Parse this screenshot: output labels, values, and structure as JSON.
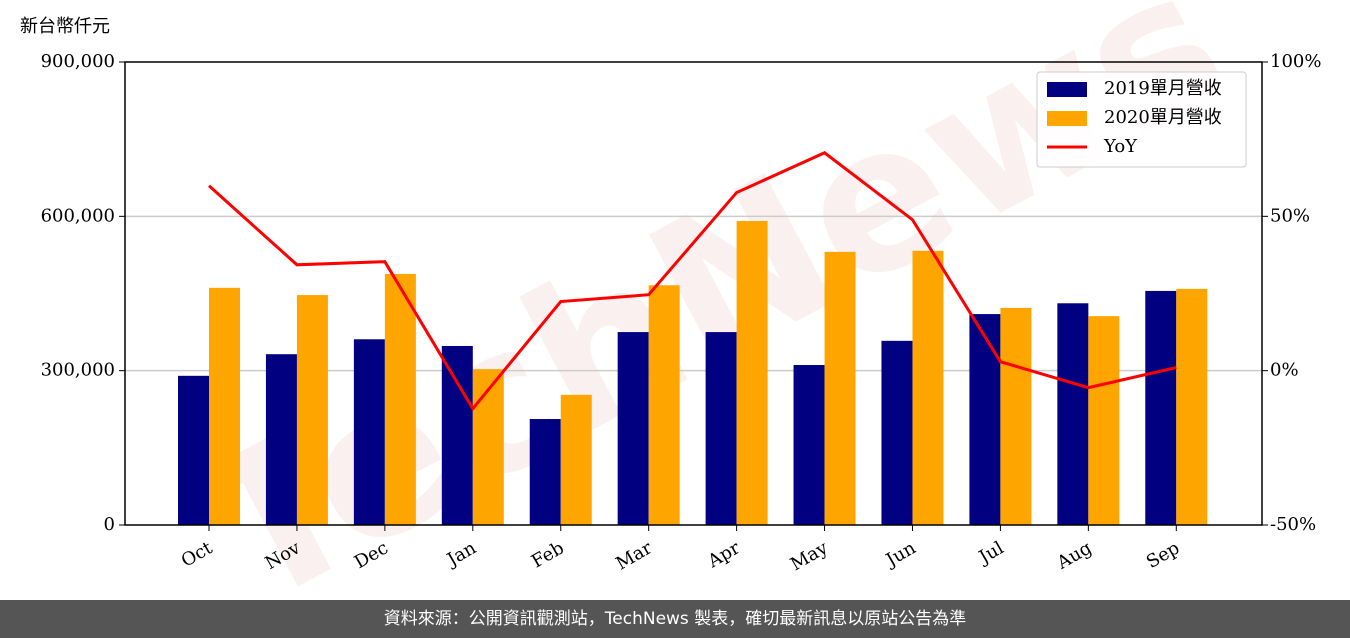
{
  "chart_data": {
    "type": "bar-line",
    "y_label": "新台幣仟元",
    "watermark": "TechNews",
    "footer": "資料來源：公開資訊觀測站，TechNews 製表，確切最新訊息以原站公告為準",
    "categories": [
      "Oct",
      "Nov",
      "Dec",
      "Jan",
      "Feb",
      "Mar",
      "Apr",
      "May",
      "Jun",
      "Jul",
      "Aug",
      "Sep"
    ],
    "series": [
      {
        "name": "2019單月營收",
        "color": "#000080",
        "kind": "bar",
        "values": [
          290000,
          332000,
          361000,
          348000,
          206000,
          375000,
          375000,
          311000,
          358000,
          410000,
          431000,
          455000
        ]
      },
      {
        "name": "2020單月營收",
        "color": "#ffa500",
        "kind": "bar",
        "values": [
          461000,
          447000,
          488000,
          303000,
          253000,
          466000,
          591000,
          531000,
          533000,
          422000,
          406000,
          459000
        ]
      },
      {
        "name": "YoY",
        "color": "#ff0000",
        "kind": "line",
        "axis": "y2",
        "values": [
          59.9,
          34.3,
          35.3,
          -12.3,
          22.4,
          24.6,
          57.7,
          70.6,
          48.9,
          2.9,
          -5.5,
          1.0
        ]
      }
    ],
    "ylim": [
      0,
      900000
    ],
    "yticks": [
      0,
      {
        "value": 300000,
        "label": "300,000"
      },
      {
        "value": 600000,
        "label": "600,000"
      },
      {
        "value": 900000,
        "label": "900,000"
      }
    ],
    "y2lim": [
      -50,
      100
    ],
    "y2ticks": [
      {
        "value": -50,
        "label": "-50%"
      },
      {
        "value": 0,
        "label": "0%"
      },
      {
        "value": 50,
        "label": "50%"
      },
      {
        "value": 100,
        "label": "100%"
      }
    ],
    "grid": true,
    "legend": "upper right"
  }
}
